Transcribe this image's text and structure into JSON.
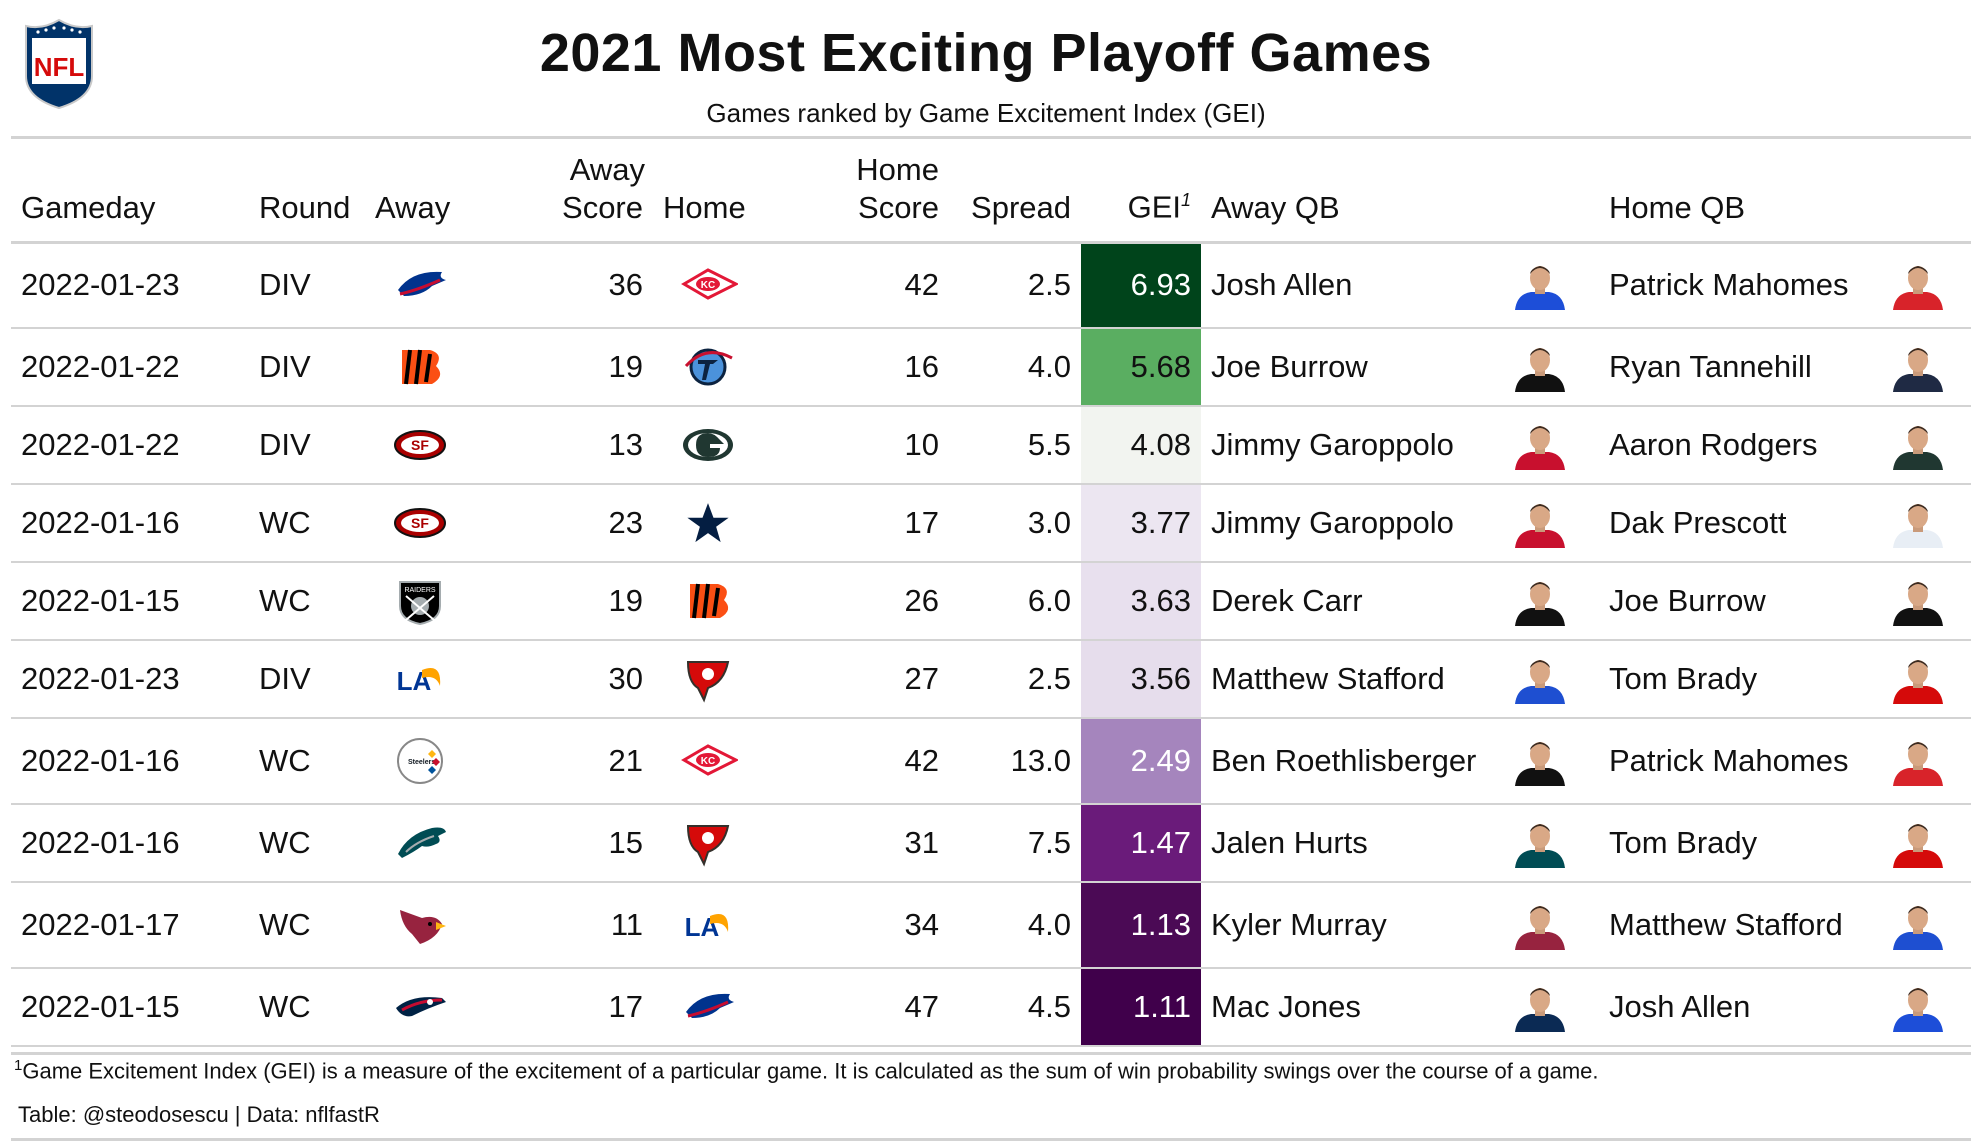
{
  "header": {
    "logo_text": "NFL",
    "title": "2021 Most Exciting Playoff Games",
    "subtitle": "Games ranked by Game Excitement Index (GEI)"
  },
  "columns": {
    "gameday": "Gameday",
    "round": "Round",
    "away": "Away",
    "away_score_1": "Away",
    "away_score_2": "Score",
    "home": "Home",
    "home_score_1": "Home",
    "home_score_2": "Score",
    "spread": "Spread",
    "gei": "GEI",
    "gei_mark": "1",
    "away_qb": "Away QB",
    "home_qb": "Home QB"
  },
  "rows": [
    {
      "gameday": "2022-01-23",
      "round": "DIV",
      "away_team": "BUF",
      "away_score": "36",
      "home_team": "KC",
      "home_score": "42",
      "spread": "2.5",
      "gei": "6.93",
      "gei_color": "#00441b",
      "away_qb": "Josh Allen",
      "home_qb": "Patrick Mahomes",
      "away_jersey": "#1d4ed8",
      "home_jersey": "#d8232a"
    },
    {
      "gameday": "2022-01-22",
      "round": "DIV",
      "away_team": "CIN",
      "away_score": "19",
      "home_team": "TEN",
      "home_score": "16",
      "spread": "4.0",
      "gei": "5.68",
      "gei_color": "#5aae61",
      "away_qb": "Joe Burrow",
      "home_qb": "Ryan Tannehill",
      "away_jersey": "#111111",
      "home_jersey": "#1f2a44"
    },
    {
      "gameday": "2022-01-22",
      "round": "DIV",
      "away_team": "SF",
      "away_score": "13",
      "home_team": "GB",
      "home_score": "10",
      "spread": "5.5",
      "gei": "4.08",
      "gei_color": "#f2f4f0",
      "away_qb": "Jimmy Garoppolo",
      "home_qb": "Aaron Rodgers",
      "away_jersey": "#c8102e",
      "home_jersey": "#203731"
    },
    {
      "gameday": "2022-01-16",
      "round": "WC",
      "away_team": "SF",
      "away_score": "23",
      "home_team": "DAL",
      "home_score": "17",
      "spread": "3.0",
      "gei": "3.77",
      "gei_color": "#ece6f1",
      "away_qb": "Jimmy Garoppolo",
      "home_qb": "Dak Prescott",
      "away_jersey": "#c8102e",
      "home_jersey": "#e8eef5"
    },
    {
      "gameday": "2022-01-15",
      "round": "WC",
      "away_team": "LV",
      "away_score": "19",
      "home_team": "CIN",
      "home_score": "26",
      "spread": "6.0",
      "gei": "3.63",
      "gei_color": "#e8e0ee",
      "away_qb": "Derek Carr",
      "home_qb": "Joe Burrow",
      "away_jersey": "#111111",
      "home_jersey": "#111111"
    },
    {
      "gameday": "2022-01-23",
      "round": "DIV",
      "away_team": "LA",
      "away_score": "30",
      "home_team": "TB",
      "home_score": "27",
      "spread": "2.5",
      "gei": "3.56",
      "gei_color": "#e6ddec",
      "away_qb": "Matthew Stafford",
      "home_qb": "Tom Brady",
      "away_jersey": "#1e4fd1",
      "home_jersey": "#d50a0a"
    },
    {
      "gameday": "2022-01-16",
      "round": "WC",
      "away_team": "PIT",
      "away_score": "21",
      "home_team": "KC",
      "home_score": "42",
      "spread": "13.0",
      "gei": "2.49",
      "gei_color": "#a585bd",
      "away_qb": "Ben Roethlisberger",
      "home_qb": "Patrick Mahomes",
      "away_jersey": "#111111",
      "home_jersey": "#d8232a"
    },
    {
      "gameday": "2022-01-16",
      "round": "WC",
      "away_team": "PHI",
      "away_score": "15",
      "home_team": "TB",
      "home_score": "31",
      "spread": "7.5",
      "gei": "1.47",
      "gei_color": "#6a1b7a",
      "away_qb": "Jalen Hurts",
      "home_qb": "Tom Brady",
      "away_jersey": "#004c54",
      "home_jersey": "#d50a0a"
    },
    {
      "gameday": "2022-01-17",
      "round": "WC",
      "away_team": "ARI",
      "away_score": "11",
      "home_team": "LA",
      "home_score": "34",
      "spread": "4.0",
      "gei": "1.13",
      "gei_color": "#4b0a55",
      "away_qb": "Kyler Murray",
      "home_qb": "Matthew Stafford",
      "away_jersey": "#97233f",
      "home_jersey": "#1e4fd1"
    },
    {
      "gameday": "2022-01-15",
      "round": "WC",
      "away_team": "NE",
      "away_score": "17",
      "home_team": "BUF",
      "home_score": "47",
      "spread": "4.5",
      "gei": "1.11",
      "gei_color": "#40004b",
      "away_qb": "Mac Jones",
      "home_qb": "Josh Allen",
      "away_jersey": "#0b2a54",
      "home_jersey": "#1d4ed8"
    }
  ],
  "team_logos": {
    "BUF": {
      "primary": "#00338d",
      "secondary": "#c60c30",
      "shape": "bison"
    },
    "KC": {
      "primary": "#e31837",
      "secondary": "#ffffff",
      "shape": "arrowhead"
    },
    "CIN": {
      "primary": "#fb4f14",
      "secondary": "#000000",
      "shape": "bengals-b"
    },
    "TEN": {
      "primary": "#0c2340",
      "secondary": "#4b92db",
      "shape": "titans-t"
    },
    "SF": {
      "primary": "#aa0000",
      "secondary": "#b3995d",
      "shape": "oval-sf"
    },
    "GB": {
      "primary": "#203731",
      "secondary": "#ffb612",
      "shape": "oval-g"
    },
    "DAL": {
      "primary": "#041e42",
      "secondary": "#ffffff",
      "shape": "star"
    },
    "LV": {
      "primary": "#000000",
      "secondary": "#a5acaf",
      "shape": "shield"
    },
    "LA": {
      "primary": "#003594",
      "secondary": "#ffa300",
      "shape": "rams-la"
    },
    "TB": {
      "primary": "#d50a0a",
      "secondary": "#34302b",
      "shape": "flag"
    },
    "PIT": {
      "primary": "#ffb612",
      "secondary": "#101820",
      "shape": "steelers-circle"
    },
    "PHI": {
      "primary": "#004c54",
      "secondary": "#a5acaf",
      "shape": "eagle"
    },
    "ARI": {
      "primary": "#97233f",
      "secondary": "#000000",
      "shape": "cardinal"
    },
    "NE": {
      "primary": "#002244",
      "secondary": "#c60c30",
      "shape": "patriot"
    }
  },
  "footer": {
    "note_mark": "1",
    "note": "Game Excitement Index (GEI) is a measure of the excitement of a particular game. It is calculated as the sum of win probability swings over the course of a game.",
    "credit": "Table: @steodosescu | Data: nflfastR"
  }
}
